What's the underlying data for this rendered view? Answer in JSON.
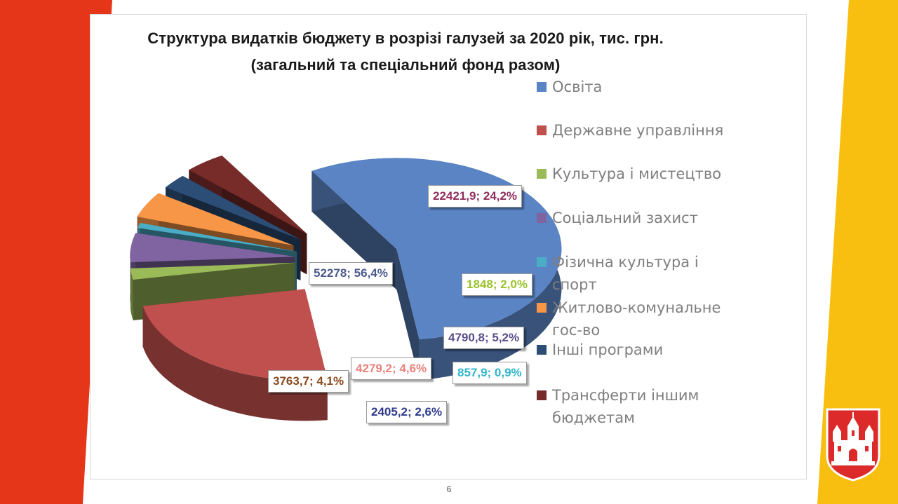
{
  "page": {
    "number": "6",
    "colors": {
      "left_stripe": "#e5361a",
      "right_stripe": "#f9bf10",
      "emblem": "#dc2a2a"
    }
  },
  "chart_data": {
    "type": "pie",
    "title": "Структура видатків бюджету в розрізі галузей за 2020 рік, тис. грн.",
    "subtitle": "(загальний та спеціальний фонд разом)",
    "legend_position": "right",
    "slices": [
      {
        "label": "Освіта",
        "value": 52278,
        "percent": 56.4,
        "data_label": "52278; 56,4%",
        "color": "#5b84c4",
        "label_color": "#4b5a8c"
      },
      {
        "label": "Державне управління",
        "value": 22421.9,
        "percent": 24.2,
        "data_label": "22421,9; 24,2%",
        "color": "#c0504d",
        "label_color": "#8e2d5c"
      },
      {
        "label": "Культура і мистецтво",
        "value": 1848,
        "percent": 2.0,
        "data_label": "1848; 2,0%",
        "color": "#9bbb59",
        "label_color": "#9bc22c"
      },
      {
        "label": "Соціальний захист",
        "value": 4790.8,
        "percent": 5.2,
        "data_label": "4790,8; 5,2%",
        "color": "#8064a2",
        "label_color": "#5c4d8a"
      },
      {
        "label": "Фізична культура і спорт",
        "value": 857.9,
        "percent": 0.9,
        "data_label": "857,9; 0,9%",
        "color": "#4bacc6",
        "label_color": "#2fb5c9"
      },
      {
        "label": "Житлово-комунальне гос-во",
        "value": 4279.2,
        "percent": 4.6,
        "data_label": "4279,2; 4,6%",
        "color": "#f79646",
        "label_color": "#e8837d"
      },
      {
        "label": "Інші програми",
        "value": 2405.2,
        "percent": 2.6,
        "data_label": "2405,2; 2,6%",
        "color": "#2c4d75",
        "label_color": "#2e3b8c"
      },
      {
        "label": "Трансферти іншим бюджетам",
        "value": 3763.7,
        "percent": 4.1,
        "data_label": "3763,7; 4,1%",
        "color": "#772c2a",
        "label_color": "#8a4a1e"
      }
    ]
  }
}
